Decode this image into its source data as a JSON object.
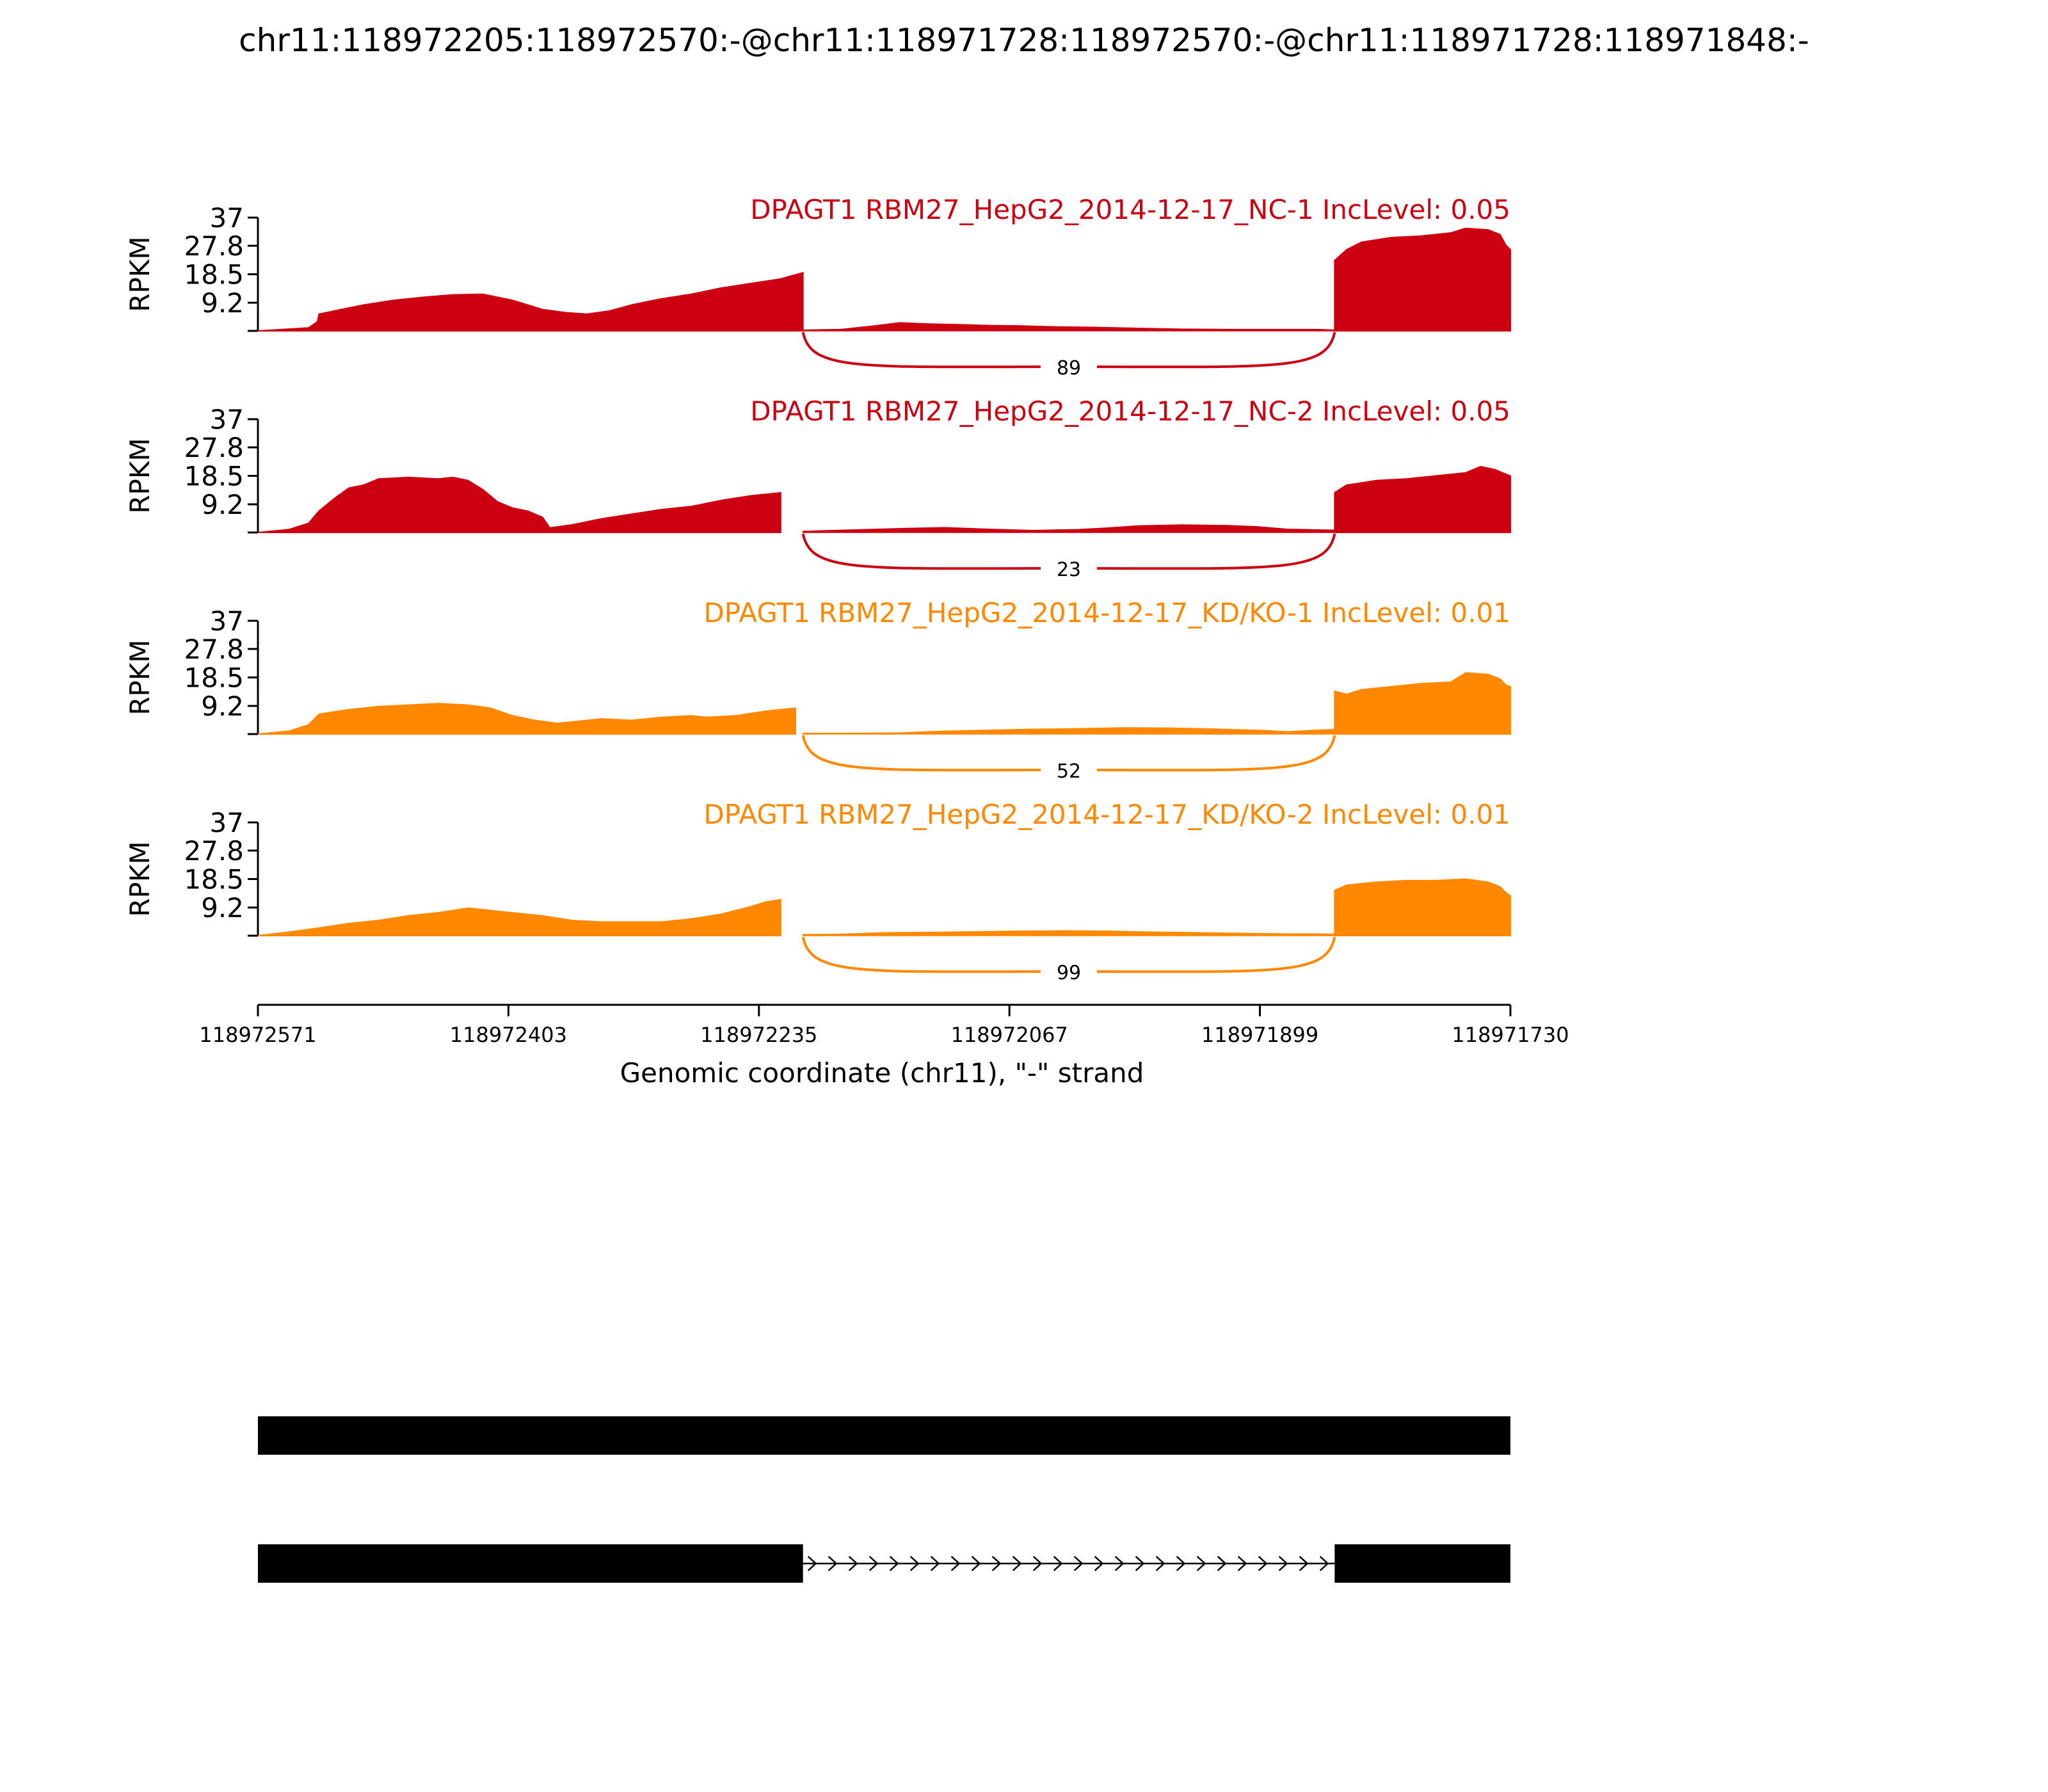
{
  "title": "chr11:118972205:118972570:-@chr11:118971728:118972570:-@chr11:118971728:118971848:-",
  "colors": {
    "nc": "#CC0011",
    "kd": "#FF8800",
    "text": "#000000"
  },
  "x_axis": {
    "label": "Genomic coordinate (chr11), \"-\" strand",
    "ticks": [
      "118972571",
      "118972403",
      "118972235",
      "118972067",
      "118971899",
      "118971730"
    ]
  },
  "chart_data": {
    "type": "area",
    "x_start": 118972571,
    "x_end": 118971730,
    "ylabel": "RPKM",
    "ylim": [
      0,
      37
    ],
    "yticks": [
      "37",
      "27.8",
      "18.5",
      "9.2"
    ],
    "exons": [
      [
        118972571,
        118972205
      ],
      [
        118971848,
        118971730
      ]
    ],
    "series": [
      {
        "name": "DPAGT1 RBM27_HepG2_2014-12-17_NC-1 IncLevel: 0.05",
        "color_key": "nc",
        "junction_count": "89",
        "coverage": [
          [
            118972571,
            0
          ],
          [
            118972537,
            1
          ],
          [
            118972531,
            3
          ],
          [
            118972530,
            5.5
          ],
          [
            118972515,
            7
          ],
          [
            118972500,
            8.5
          ],
          [
            118972480,
            10
          ],
          [
            118972460,
            11
          ],
          [
            118972440,
            11.8
          ],
          [
            118972420,
            12
          ],
          [
            118972400,
            10
          ],
          [
            118972380,
            7
          ],
          [
            118972365,
            6
          ],
          [
            118972350,
            5.5
          ],
          [
            118972335,
            6.5
          ],
          [
            118972320,
            8.5
          ],
          [
            118972300,
            10.5
          ],
          [
            118972280,
            12
          ],
          [
            118972260,
            14
          ],
          [
            118972240,
            15.5
          ],
          [
            118972220,
            17
          ],
          [
            118972205,
            19
          ],
          [
            118972185,
            20
          ],
          [
            118972170,
            20.5
          ],
          [
            118972150,
            20
          ],
          [
            118972130,
            19.5
          ],
          [
            118972110,
            19
          ],
          [
            118972090,
            20
          ],
          [
            118972070,
            21.5
          ],
          [
            118972050,
            22.5
          ],
          [
            118972030,
            23
          ],
          [
            118972015,
            22.5
          ],
          [
            118972000,
            21
          ],
          [
            118971980,
            21.5
          ],
          [
            118971960,
            22.5
          ],
          [
            118971940,
            23.5
          ],
          [
            118971920,
            24.5
          ],
          [
            118971900,
            25
          ],
          [
            118971880,
            25.5
          ],
          [
            118971865,
            27.5
          ],
          [
            118971850,
            25
          ],
          [
            118971848,
            23
          ],
          [
            118971840,
            26.5
          ],
          [
            118971830,
            29
          ],
          [
            118971810,
            30.5
          ],
          [
            118971790,
            31
          ],
          [
            118971770,
            32
          ],
          [
            118971760,
            33.5
          ],
          [
            118971745,
            33
          ],
          [
            118971737,
            31.5
          ],
          [
            118971733,
            28
          ],
          [
            118971730,
            26.5
          ]
        ],
        "intron_coverage": [
          [
            118972205,
            0.3
          ],
          [
            118972180,
            0.5
          ],
          [
            118972160,
            1.5
          ],
          [
            118972140,
            2.7
          ],
          [
            118972120,
            2.3
          ],
          [
            118972100,
            2.1
          ],
          [
            118972080,
            1.8
          ],
          [
            118972060,
            1.7
          ],
          [
            118972040,
            1.4
          ],
          [
            118972010,
            1.2
          ],
          [
            118971980,
            0.9
          ],
          [
            118971950,
            0.6
          ],
          [
            118971920,
            0.5
          ],
          [
            118971890,
            0.5
          ],
          [
            118971860,
            0.5
          ],
          [
            118971848,
            0.3
          ]
        ]
      },
      {
        "name": "DPAGT1 RBM27_HepG2_2014-12-17_NC-2 IncLevel: 0.05",
        "color_key": "nc",
        "junction_count": "23",
        "coverage": [
          [
            118972571,
            0
          ],
          [
            118972550,
            1
          ],
          [
            118972537,
            3
          ],
          [
            118972530,
            7
          ],
          [
            118972520,
            11
          ],
          [
            118972510,
            14.5
          ],
          [
            118972500,
            15.5
          ],
          [
            118972490,
            17.5
          ],
          [
            118972470,
            18
          ],
          [
            118972450,
            17.5
          ],
          [
            118972440,
            18
          ],
          [
            118972430,
            17
          ],
          [
            118972420,
            14
          ],
          [
            118972410,
            10
          ],
          [
            118972400,
            8
          ],
          [
            118972390,
            7
          ],
          [
            118972380,
            5
          ],
          [
            118972375,
            1.5
          ],
          [
            118972360,
            2.5
          ],
          [
            118972340,
            4.5
          ],
          [
            118972320,
            6
          ],
          [
            118972300,
            7.5
          ],
          [
            118972280,
            8.5
          ],
          [
            118972260,
            10.5
          ],
          [
            118972240,
            12
          ],
          [
            118972220,
            13
          ],
          [
            118972200,
            13.5
          ],
          [
            118972180,
            13.5
          ],
          [
            118972160,
            13
          ],
          [
            118972140,
            12.5
          ],
          [
            118972120,
            12
          ],
          [
            118972100,
            11.5
          ],
          [
            118972080,
            12
          ],
          [
            118972060,
            13
          ],
          [
            118972040,
            12.5
          ],
          [
            118972020,
            12.8
          ],
          [
            118972000,
            11.5
          ],
          [
            118971985,
            12
          ],
          [
            118971970,
            13
          ],
          [
            118971955,
            12.5
          ],
          [
            118971940,
            13
          ],
          [
            118971925,
            13.5
          ],
          [
            118971910,
            14
          ],
          [
            118971890,
            13.5
          ],
          [
            118971870,
            13.5
          ],
          [
            118971848,
            13
          ],
          [
            118971840,
            15.5
          ],
          [
            118971820,
            17
          ],
          [
            118971800,
            17.5
          ],
          [
            118971780,
            18.5
          ],
          [
            118971760,
            19.5
          ],
          [
            118971750,
            21.5
          ],
          [
            118971740,
            20.5
          ],
          [
            118971733,
            19
          ],
          [
            118971730,
            18.5
          ]
        ],
        "intron_coverage": [
          [
            118972205,
            0.4
          ],
          [
            118972170,
            0.9
          ],
          [
            118972140,
            1.3
          ],
          [
            118972110,
            1.6
          ],
          [
            118972080,
            1.1
          ],
          [
            118972050,
            0.7
          ],
          [
            118972020,
            1
          ],
          [
            118972000,
            1.5
          ],
          [
            118971980,
            2.2
          ],
          [
            118971950,
            2.5
          ],
          [
            118971920,
            2.3
          ],
          [
            118971900,
            1.9
          ],
          [
            118971880,
            1.1
          ],
          [
            118971860,
            0.9
          ],
          [
            118971848,
            0.8
          ]
        ]
      },
      {
        "name": "DPAGT1 RBM27_HepG2_2014-12-17_KD/KO-1 IncLevel: 0.01",
        "color_key": "kd",
        "junction_count": "52",
        "coverage": [
          [
            118972571,
            0
          ],
          [
            118972550,
            1
          ],
          [
            118972537,
            3
          ],
          [
            118972530,
            6.5
          ],
          [
            118972510,
            8
          ],
          [
            118972490,
            9
          ],
          [
            118972470,
            9.5
          ],
          [
            118972450,
            10
          ],
          [
            118972430,
            9.5
          ],
          [
            118972415,
            8.5
          ],
          [
            118972400,
            6
          ],
          [
            118972385,
            4.5
          ],
          [
            118972370,
            3.5
          ],
          [
            118972360,
            4
          ],
          [
            118972340,
            5
          ],
          [
            118972320,
            4.5
          ],
          [
            118972300,
            5.5
          ],
          [
            118972280,
            6
          ],
          [
            118972270,
            5.5
          ],
          [
            118972250,
            6
          ],
          [
            118972230,
            7.5
          ],
          [
            118972210,
            8.5
          ],
          [
            118972190,
            9.5
          ],
          [
            118972180,
            10.5
          ],
          [
            118972160,
            10
          ],
          [
            118972140,
            10
          ],
          [
            118972120,
            9.5
          ],
          [
            118972100,
            10
          ],
          [
            118972080,
            11
          ],
          [
            118972060,
            11.5
          ],
          [
            118972040,
            11.8
          ],
          [
            118972020,
            11
          ],
          [
            118972000,
            10.5
          ],
          [
            118971980,
            10.8
          ],
          [
            118971960,
            11.5
          ],
          [
            118971940,
            12
          ],
          [
            118971920,
            13.5
          ],
          [
            118971900,
            14
          ],
          [
            118971880,
            14.5
          ],
          [
            118971860,
            15
          ],
          [
            118971848,
            14
          ],
          [
            118971840,
            13
          ],
          [
            118971830,
            14.5
          ],
          [
            118971810,
            15.5
          ],
          [
            118971790,
            16.5
          ],
          [
            118971770,
            17
          ],
          [
            118971760,
            20
          ],
          [
            118971745,
            19.5
          ],
          [
            118971737,
            18
          ],
          [
            118971733,
            16
          ],
          [
            118971730,
            15.5
          ]
        ],
        "intron_coverage": [
          [
            118972205,
            0.3
          ],
          [
            118972170,
            0.3
          ],
          [
            118972140,
            0.4
          ],
          [
            118972110,
            1
          ],
          [
            118972080,
            1.3
          ],
          [
            118972050,
            1.6
          ],
          [
            118972020,
            1.8
          ],
          [
            118971990,
            2.1
          ],
          [
            118971960,
            2
          ],
          [
            118971930,
            1.7
          ],
          [
            118971910,
            1.4
          ],
          [
            118971895,
            1.2
          ],
          [
            118971880,
            0.8
          ],
          [
            118971860,
            1.3
          ],
          [
            118971848,
            1.5
          ]
        ]
      },
      {
        "name": "DPAGT1 RBM27_HepG2_2014-12-17_KD/KO-2 IncLevel: 0.01",
        "color_key": "kd",
        "junction_count": "99",
        "coverage": [
          [
            118972571,
            0
          ],
          [
            118972550,
            1.2
          ],
          [
            118972530,
            2.5
          ],
          [
            118972510,
            4
          ],
          [
            118972490,
            5
          ],
          [
            118972470,
            6.5
          ],
          [
            118972450,
            7.5
          ],
          [
            118972430,
            9
          ],
          [
            118972420,
            8.5
          ],
          [
            118972400,
            7.5
          ],
          [
            118972380,
            6.5
          ],
          [
            118972360,
            5
          ],
          [
            118972340,
            4.5
          ],
          [
            118972320,
            4.5
          ],
          [
            118972300,
            4.5
          ],
          [
            118972280,
            5.5
          ],
          [
            118972260,
            7
          ],
          [
            118972240,
            9.5
          ],
          [
            118972230,
            11
          ],
          [
            118972220,
            11.8
          ],
          [
            118972200,
            12
          ],
          [
            118972180,
            13.2
          ],
          [
            118972160,
            13.5
          ],
          [
            118972150,
            13
          ],
          [
            118972130,
            13.5
          ],
          [
            118972110,
            14
          ],
          [
            118972090,
            14.5
          ],
          [
            118972070,
            15
          ],
          [
            118972050,
            15
          ],
          [
            118972030,
            15.5
          ],
          [
            118972000,
            15
          ],
          [
            118971990,
            15
          ],
          [
            118971970,
            15.5
          ],
          [
            118971950,
            16
          ],
          [
            118971930,
            16.5
          ],
          [
            118971910,
            17
          ],
          [
            118971890,
            16
          ],
          [
            118971870,
            15.5
          ],
          [
            118971848,
            14.8
          ],
          [
            118971840,
            16.5
          ],
          [
            118971820,
            17.5
          ],
          [
            118971800,
            18
          ],
          [
            118971780,
            18
          ],
          [
            118971760,
            18.5
          ],
          [
            118971745,
            17.5
          ],
          [
            118971737,
            16
          ],
          [
            118971733,
            14
          ],
          [
            118971730,
            13
          ]
        ],
        "intron_coverage": [
          [
            118972205,
            0.4
          ],
          [
            118972180,
            0.5
          ],
          [
            118972150,
            1
          ],
          [
            118972120,
            1.1
          ],
          [
            118972090,
            1.3
          ],
          [
            118972060,
            1.5
          ],
          [
            118972030,
            1.6
          ],
          [
            118972000,
            1.5
          ],
          [
            118971970,
            1.2
          ],
          [
            118971940,
            1
          ],
          [
            118971910,
            0.8
          ],
          [
            118971880,
            0.6
          ],
          [
            118971860,
            0.6
          ],
          [
            118971848,
            0.5
          ]
        ]
      }
    ]
  },
  "gene_models": [
    {
      "exons": [
        [
          118972571,
          118971730
        ]
      ]
    },
    {
      "exons": [
        [
          118972571,
          118972205
        ],
        [
          118971848,
          118971730
        ]
      ],
      "strand": "-"
    }
  ]
}
